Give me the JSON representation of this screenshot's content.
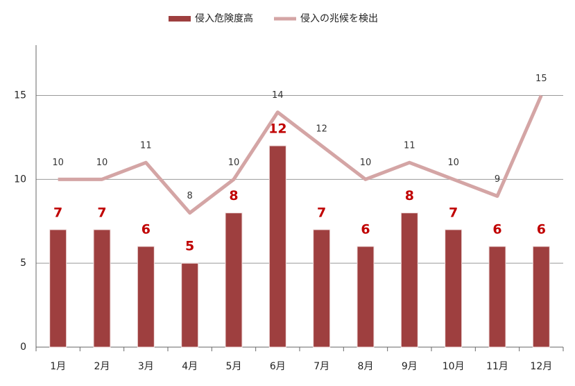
{
  "chart_data": {
    "type": "combo",
    "categories": [
      "1月",
      "2月",
      "3月",
      "4月",
      "5月",
      "6月",
      "7月",
      "8月",
      "9月",
      "10月",
      "11月",
      "12月"
    ],
    "series": [
      {
        "name": "侵入危険度高",
        "type": "bar",
        "color": "#9e3f3f",
        "values": [
          7,
          7,
          6,
          5,
          8,
          12,
          7,
          6,
          8,
          7,
          6,
          6
        ]
      },
      {
        "name": "侵入の兆候を検出",
        "type": "line",
        "color": "#d4a5a5",
        "values": [
          10,
          10,
          11,
          8,
          10,
          14,
          12,
          10,
          11,
          10,
          9,
          15
        ]
      }
    ],
    "ylim": [
      0,
      18
    ],
    "yticks": [
      0,
      5,
      10,
      15
    ],
    "grid": true,
    "legend": "top"
  }
}
